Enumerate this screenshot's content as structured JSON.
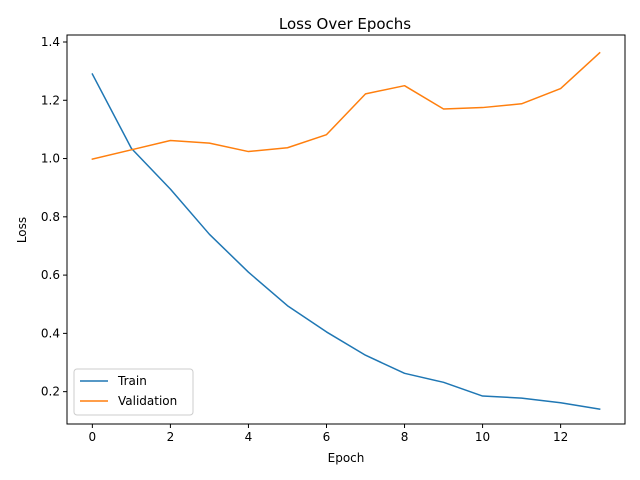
{
  "chart_data": {
    "type": "line",
    "title": "Loss Over Epochs",
    "xlabel": "Epoch",
    "ylabel": "Loss",
    "x": [
      0,
      1,
      2,
      3,
      4,
      5,
      6,
      7,
      8,
      9,
      10,
      11,
      12,
      13
    ],
    "series": [
      {
        "name": "Train",
        "color": "#1f77b4",
        "values": [
          1.29,
          1.035,
          0.895,
          0.74,
          0.61,
          0.495,
          0.405,
          0.325,
          0.263,
          0.232,
          0.185,
          0.178,
          0.162,
          0.14
        ]
      },
      {
        "name": "Validation",
        "color": "#ff7f0e",
        "values": [
          0.998,
          1.03,
          1.062,
          1.053,
          1.024,
          1.037,
          1.082,
          1.222,
          1.25,
          1.17,
          1.175,
          1.188,
          1.24,
          1.363
        ]
      }
    ],
    "xlim": [
      -0.65,
      13.65
    ],
    "ylim": [
      0.089,
      1.424
    ],
    "xticks": [
      0,
      2,
      4,
      6,
      8,
      10,
      12
    ],
    "xtick_labels": [
      "0",
      "2",
      "4",
      "6",
      "8",
      "10",
      "12"
    ],
    "yticks": [
      0.2,
      0.4,
      0.6,
      0.8,
      1.0,
      1.2,
      1.4
    ],
    "ytick_labels": [
      "0.2",
      "0.4",
      "0.6",
      "0.8",
      "1.0",
      "1.2",
      "1.4"
    ],
    "grid": false,
    "legend_position": "lower left"
  }
}
